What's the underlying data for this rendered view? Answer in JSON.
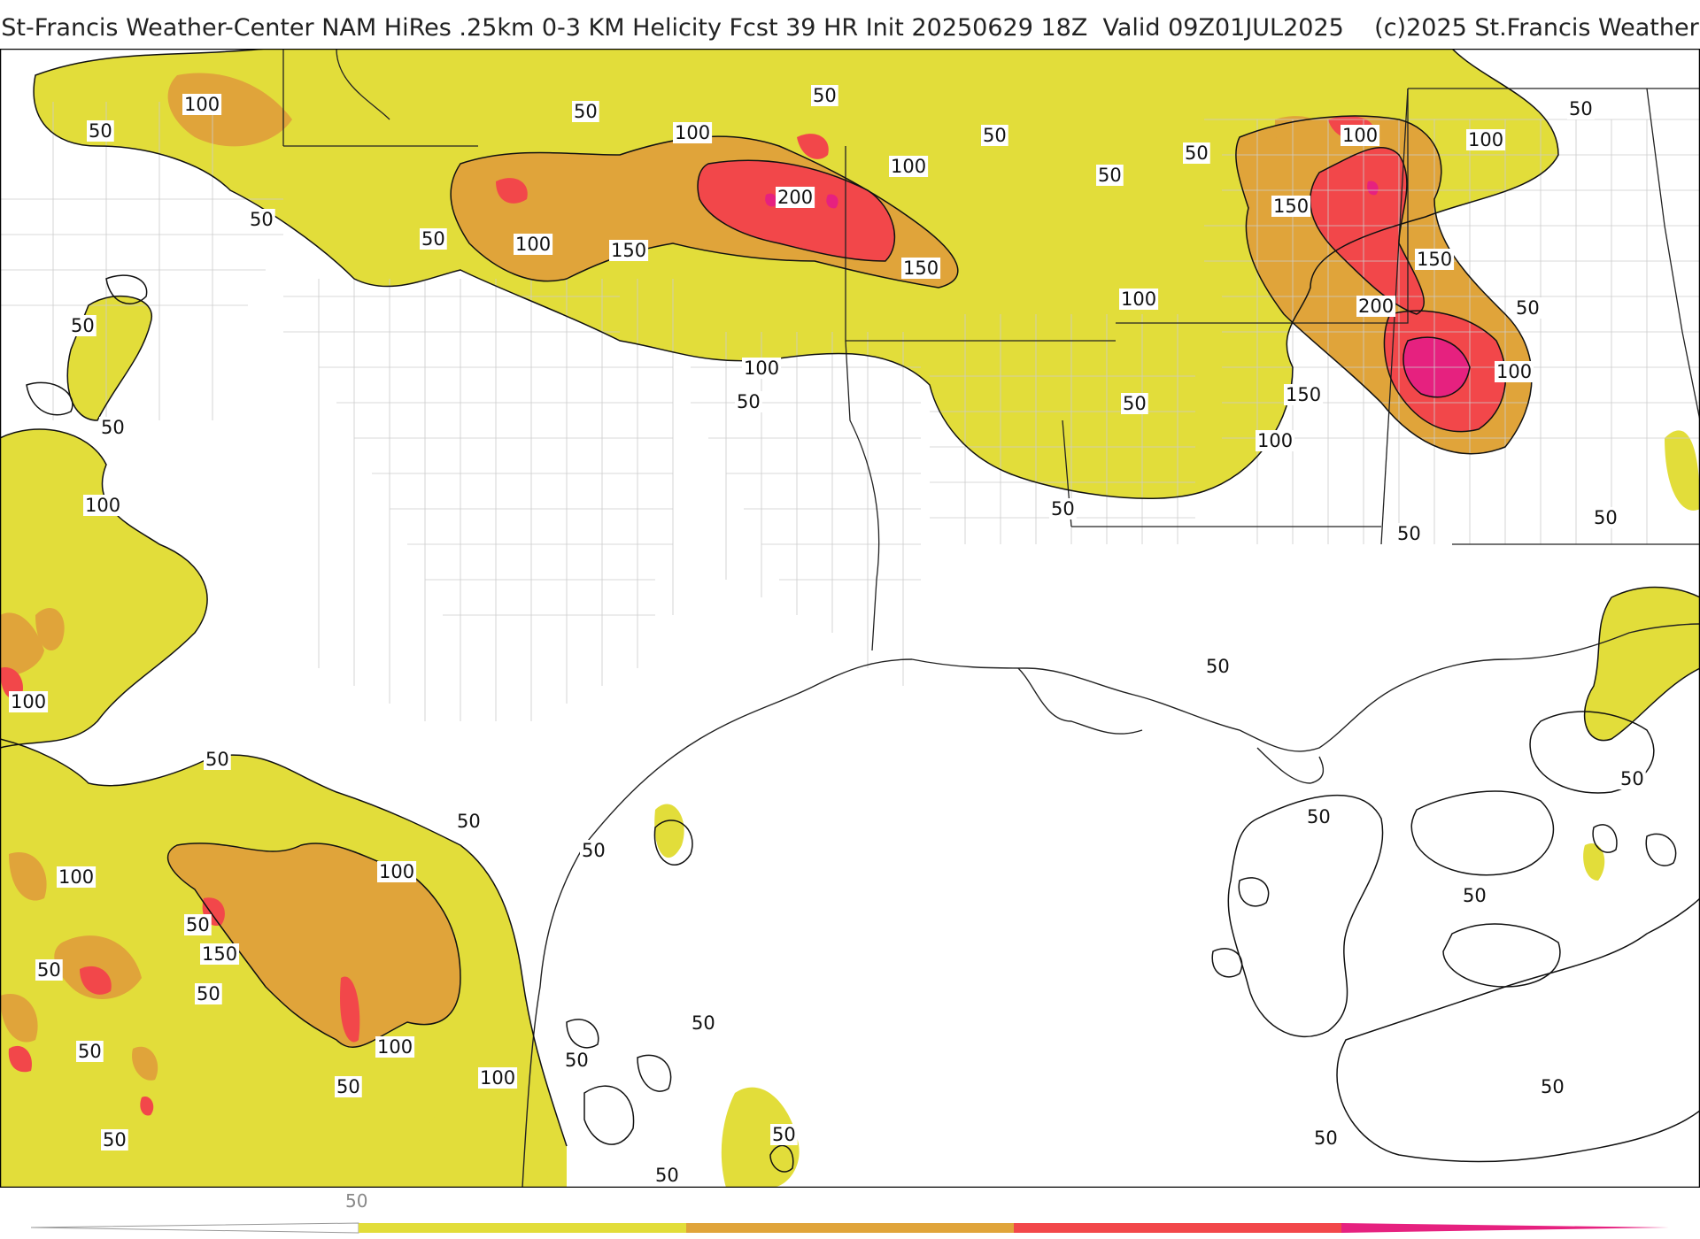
{
  "header": {
    "title": "St-Francis Weather-Center NAM HiRes .25km 0-3 KM Helicity Fcst 39 HR Init 20250629 18Z  Valid 09Z01JUL2025",
    "copyright": "(c)2025 St.Francis Weather"
  },
  "colors": {
    "lvl50": "#e2dd3a",
    "lvl100": "#e0a43a",
    "lvl150": "#f2474a",
    "lvl200": "#e6217f",
    "contour": "#111111",
    "borders": "#cccccc",
    "land_bg": "#ffffff"
  },
  "legend": {
    "tick_label": "50",
    "levels": [
      50,
      100,
      150,
      200
    ]
  },
  "contour_labels": [
    {
      "id": "l1",
      "text": "100"
    },
    {
      "id": "l2",
      "text": "50"
    },
    {
      "id": "l3",
      "text": "50"
    },
    {
      "id": "l4",
      "text": "50"
    },
    {
      "id": "l5",
      "text": "100"
    },
    {
      "id": "l6",
      "text": "50"
    },
    {
      "id": "l7",
      "text": "100"
    },
    {
      "id": "l8",
      "text": "150"
    },
    {
      "id": "l9",
      "text": "200"
    },
    {
      "id": "l10",
      "text": "100"
    },
    {
      "id": "l11",
      "text": "150"
    },
    {
      "id": "l12",
      "text": "50"
    },
    {
      "id": "l13",
      "text": "50"
    },
    {
      "id": "l14",
      "text": "100"
    },
    {
      "id": "l15",
      "text": "50"
    },
    {
      "id": "l16",
      "text": "50"
    },
    {
      "id": "l17",
      "text": "50"
    },
    {
      "id": "l18",
      "text": "100"
    },
    {
      "id": "l19",
      "text": "150"
    },
    {
      "id": "l20",
      "text": "200"
    },
    {
      "id": "l21",
      "text": "150"
    },
    {
      "id": "l22",
      "text": "100"
    },
    {
      "id": "l23",
      "text": "50"
    },
    {
      "id": "l24",
      "text": "100"
    },
    {
      "id": "l25",
      "text": "150"
    },
    {
      "id": "l26",
      "text": "100"
    },
    {
      "id": "l27",
      "text": "100"
    },
    {
      "id": "l28",
      "text": "50"
    },
    {
      "id": "l29",
      "text": "50"
    },
    {
      "id": "l30",
      "text": "50"
    },
    {
      "id": "l31",
      "text": "50"
    },
    {
      "id": "l32",
      "text": "50"
    },
    {
      "id": "l33",
      "text": "50"
    },
    {
      "id": "l34",
      "text": "50"
    },
    {
      "id": "l35",
      "text": "100"
    },
    {
      "id": "l36",
      "text": "100"
    },
    {
      "id": "l37",
      "text": "50"
    },
    {
      "id": "l38",
      "text": "100"
    },
    {
      "id": "l39",
      "text": "100"
    },
    {
      "id": "l40",
      "text": "50"
    },
    {
      "id": "l41",
      "text": "150"
    },
    {
      "id": "l42",
      "text": "50"
    },
    {
      "id": "l43",
      "text": "50"
    },
    {
      "id": "l44",
      "text": "100"
    },
    {
      "id": "l45",
      "text": "100"
    },
    {
      "id": "l46",
      "text": "50"
    },
    {
      "id": "l47",
      "text": "50"
    },
    {
      "id": "l48",
      "text": "50"
    },
    {
      "id": "l49",
      "text": "50"
    },
    {
      "id": "l50",
      "text": "50"
    },
    {
      "id": "l51",
      "text": "50"
    },
    {
      "id": "l52",
      "text": "50"
    },
    {
      "id": "l53",
      "text": "50"
    },
    {
      "id": "l54",
      "text": "50"
    },
    {
      "id": "l55",
      "text": "50"
    },
    {
      "id": "l56",
      "text": "50"
    },
    {
      "id": "l57",
      "text": "50"
    },
    {
      "id": "l58",
      "text": "50"
    },
    {
      "id": "l59",
      "text": "50"
    },
    {
      "id": "l60",
      "text": "50"
    }
  ]
}
